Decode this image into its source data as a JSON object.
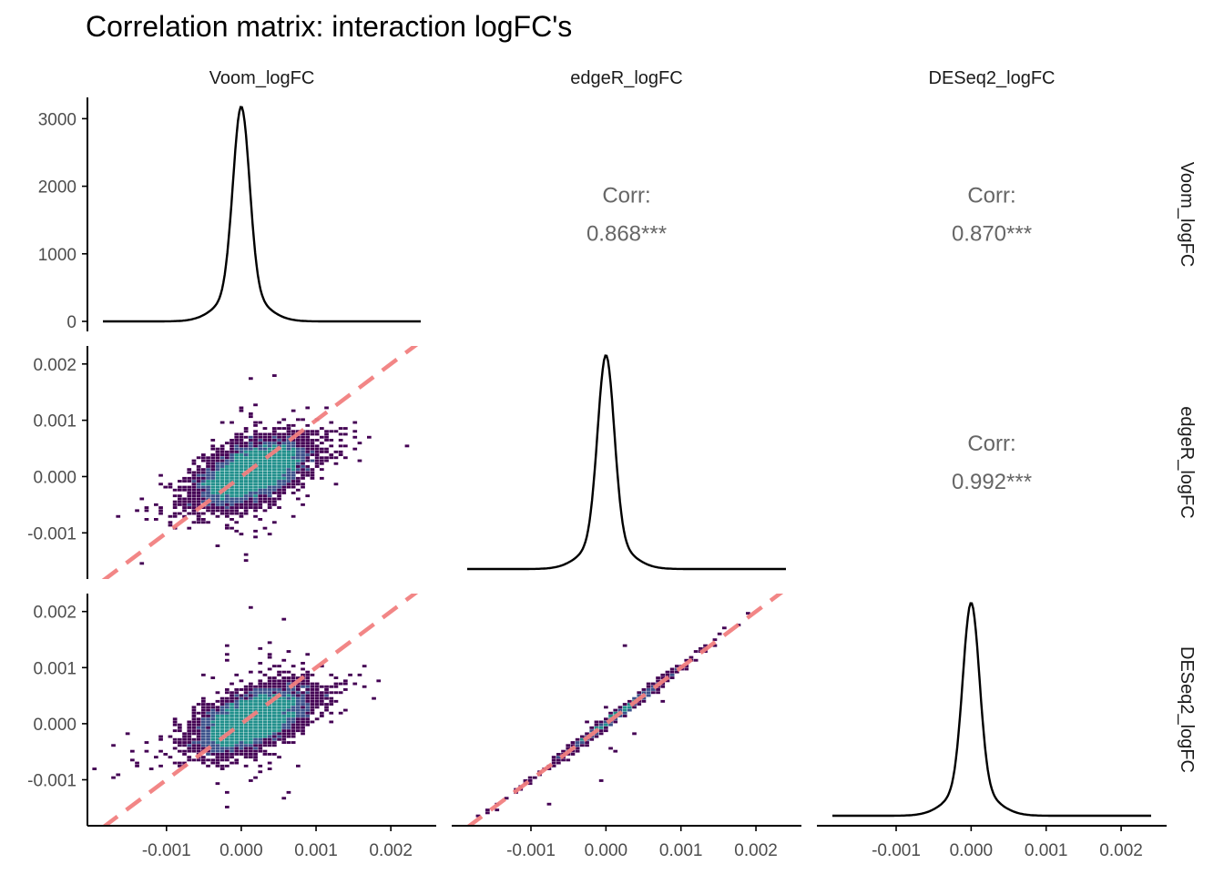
{
  "chart_data": {
    "type": "scatter",
    "title": "Correlation matrix: interaction logFC's",
    "variables": [
      "Voom_logFC",
      "edgeR_logFC",
      "DESeq2_logFC"
    ],
    "x_ticks": [
      -0.001,
      0.0,
      0.001,
      0.002
    ],
    "x_tick_labels": [
      "-0.001",
      "0.000",
      "0.001",
      "0.002"
    ],
    "xlim": [
      -0.00185,
      0.0024
    ],
    "density_ticks": [
      0,
      1000,
      2000,
      3000
    ],
    "density_ylim": [
      0,
      3300
    ],
    "density_peak": 3180,
    "y_ticks": [
      -0.001,
      0.0,
      0.001,
      0.002
    ],
    "y_tick_labels": [
      "-0.001",
      "0.000",
      "0.001",
      "0.002"
    ],
    "ylim": [
      -0.00182,
      0.00232
    ],
    "correlations": [
      {
        "row": "Voom_logFC",
        "col": "edgeR_logFC",
        "label": "Corr:",
        "value": "0.868***"
      },
      {
        "row": "Voom_logFC",
        "col": "DESeq2_logFC",
        "label": "Corr:",
        "value": "0.870***"
      },
      {
        "row": "edgeR_logFC",
        "col": "DESeq2_logFC",
        "label": "Corr:",
        "value": "0.992***"
      }
    ],
    "scatter_panels": [
      {
        "row": "edgeR_logFC",
        "col": "Voom_logFC",
        "correlation": 0.868
      },
      {
        "row": "DESeq2_logFC",
        "col": "Voom_logFC",
        "correlation": 0.87
      },
      {
        "row": "DESeq2_logFC",
        "col": "edgeR_logFC",
        "correlation": 0.992
      }
    ],
    "reference_line": {
      "style": "dashed",
      "slope": 1,
      "intercept": 0
    },
    "density_curve": {
      "center": 0.0,
      "sd": 0.00011
    },
    "grid": false,
    "legend": "none"
  },
  "colors": {
    "density_line": "#000000",
    "reference_line": "#f28080",
    "hex_dark": "#440154",
    "hex_mid": "#3b528b",
    "hex_teal": "#21908c",
    "correlation_text": "#666666",
    "axis": "#000000"
  }
}
